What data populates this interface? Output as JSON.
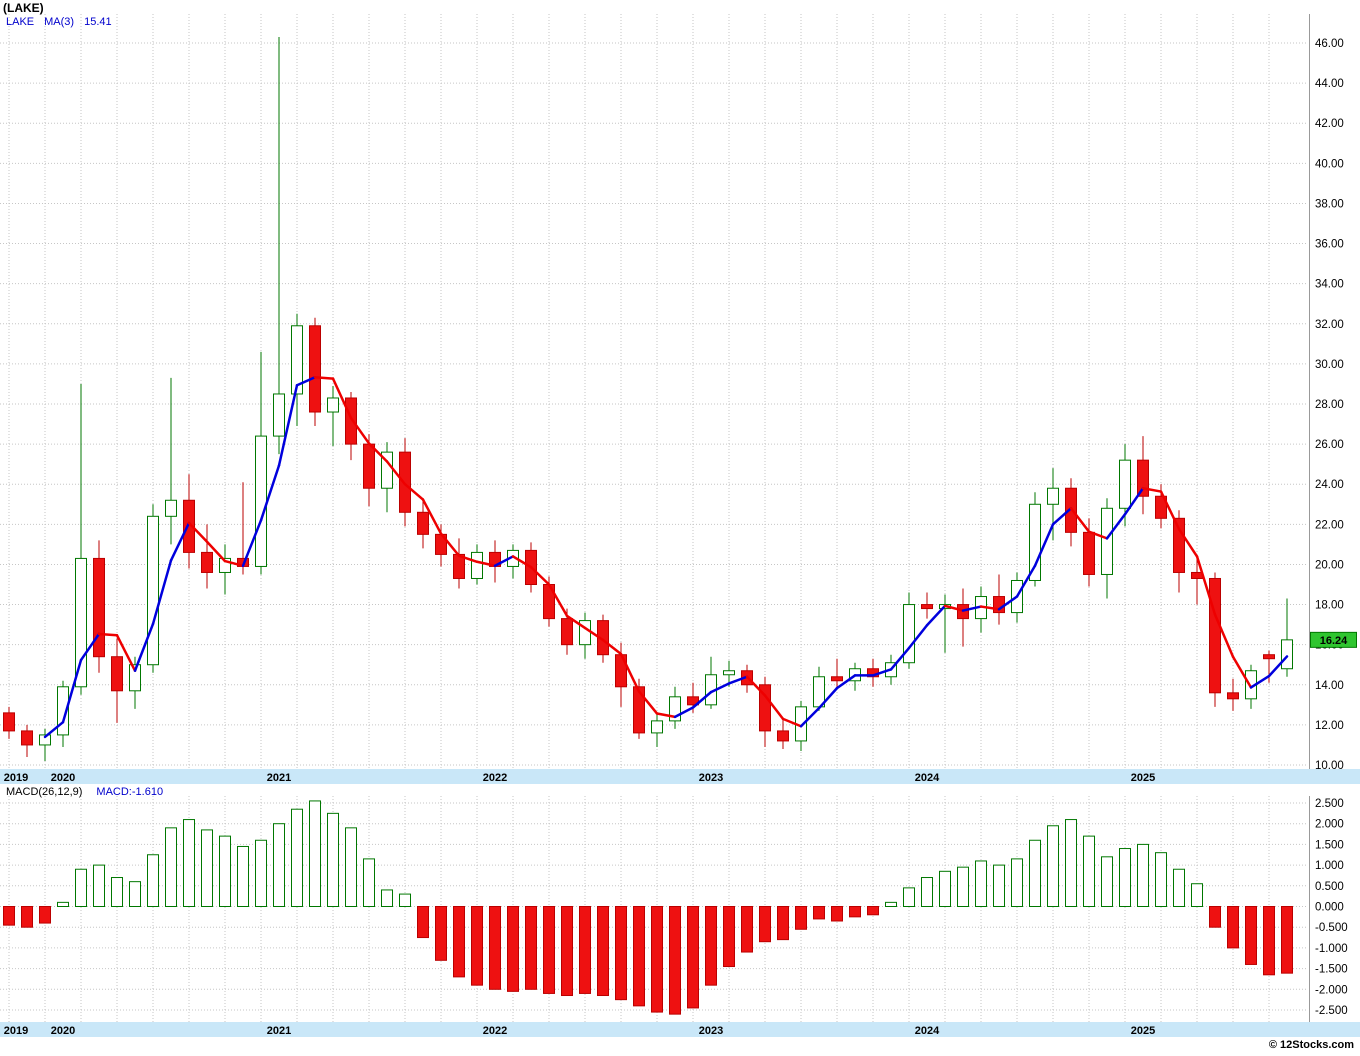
{
  "header": {
    "title": "(LAKE)",
    "legend_symbol": "LAKE",
    "legend_ma_label": "MA(3)",
    "legend_ma_value": "15.41"
  },
  "macd_header": {
    "label": "MACD(26,12,9)",
    "value_label": "MACD:-1.610"
  },
  "footer": {
    "copyright": "© 12Stocks.com"
  },
  "colors": {
    "up": "#007700",
    "up_fill": "#ffffff",
    "down": "#bb0000",
    "down_fill": "#ee1111",
    "ma_up": "#0000dd",
    "ma_down": "#ee0000",
    "grid": "#c6c6c6",
    "axis_text": "#000000",
    "strip_bg": "#c9e7f8",
    "tag_bg": "#2fc52f",
    "tag_border": "#007700",
    "tag_text": "#000000",
    "title_text": "#000000",
    "legend_text": "#0000cc",
    "macd_label_text": "#000000",
    "macd_value_text": "#0000cc",
    "panel_border": "#999999"
  },
  "chart_data": [
    {
      "type": "candlestick",
      "symbol": "LAKE",
      "ma_period": 3,
      "ma_last": 15.41,
      "last_price": 16.24,
      "ylim": [
        10,
        46
      ],
      "y_ticks": [
        46,
        44,
        42,
        40,
        38,
        36,
        34,
        32,
        30,
        28,
        26,
        24,
        22,
        20,
        18,
        16,
        14,
        12,
        10
      ],
      "year_ticks": [
        {
          "label": "2019",
          "index": 0
        },
        {
          "label": "2020",
          "index": 3
        },
        {
          "label": "2021",
          "index": 15
        },
        {
          "label": "2022",
          "index": 27
        },
        {
          "label": "2023",
          "index": 39
        },
        {
          "label": "2024",
          "index": 51
        },
        {
          "label": "2025",
          "index": 63
        }
      ],
      "months": [
        "2019-10",
        "2019-11",
        "2019-12",
        "2020-01",
        "2020-02",
        "2020-03",
        "2020-04",
        "2020-05",
        "2020-06",
        "2020-07",
        "2020-08",
        "2020-09",
        "2020-10",
        "2020-11",
        "2020-12",
        "2021-01",
        "2021-02",
        "2021-03",
        "2021-04",
        "2021-05",
        "2021-06",
        "2021-07",
        "2021-08",
        "2021-09",
        "2021-10",
        "2021-11",
        "2021-12",
        "2022-01",
        "2022-02",
        "2022-03",
        "2022-04",
        "2022-05",
        "2022-06",
        "2022-07",
        "2022-08",
        "2022-09",
        "2022-10",
        "2022-11",
        "2022-12",
        "2023-01",
        "2023-02",
        "2023-03",
        "2023-04",
        "2023-05",
        "2023-06",
        "2023-07",
        "2023-08",
        "2023-09",
        "2023-10",
        "2023-11",
        "2023-12",
        "2024-01",
        "2024-02",
        "2024-03",
        "2024-04",
        "2024-05",
        "2024-06",
        "2024-07",
        "2024-08",
        "2024-09",
        "2024-10",
        "2024-11",
        "2024-12",
        "2025-01",
        "2025-02",
        "2025-03",
        "2025-04",
        "2025-05",
        "2025-06",
        "2025-07",
        "2025-08",
        "2025-09"
      ],
      "ohlc": [
        [
          12.6,
          12.9,
          11.3,
          11.7
        ],
        [
          11.7,
          12.0,
          10.4,
          11.0
        ],
        [
          11.0,
          11.8,
          10.2,
          11.5
        ],
        [
          11.5,
          14.2,
          10.9,
          13.9
        ],
        [
          13.9,
          29.0,
          13.5,
          20.3
        ],
        [
          20.3,
          21.2,
          14.6,
          15.4
        ],
        [
          15.4,
          16.3,
          12.1,
          13.7
        ],
        [
          13.7,
          15.4,
          12.8,
          15.0
        ],
        [
          15.0,
          23.0,
          14.6,
          22.4
        ],
        [
          22.4,
          29.3,
          21.0,
          23.2
        ],
        [
          23.2,
          24.5,
          19.8,
          20.6
        ],
        [
          20.6,
          22.0,
          18.8,
          19.6
        ],
        [
          19.6,
          21.0,
          18.5,
          20.3
        ],
        [
          20.3,
          24.1,
          19.5,
          19.9
        ],
        [
          19.9,
          30.6,
          19.5,
          26.4
        ],
        [
          26.4,
          46.3,
          25.5,
          28.5
        ],
        [
          28.5,
          32.5,
          26.9,
          31.9
        ],
        [
          31.9,
          32.3,
          26.9,
          27.6
        ],
        [
          27.6,
          28.9,
          25.9,
          28.3
        ],
        [
          28.3,
          28.6,
          25.2,
          26.0
        ],
        [
          26.0,
          26.5,
          22.9,
          23.8
        ],
        [
          23.8,
          26.1,
          22.6,
          25.6
        ],
        [
          25.6,
          26.3,
          21.9,
          22.6
        ],
        [
          22.6,
          23.3,
          20.8,
          21.5
        ],
        [
          21.5,
          22.0,
          19.9,
          20.5
        ],
        [
          20.5,
          21.3,
          18.8,
          19.3
        ],
        [
          19.3,
          21.0,
          19.0,
          20.6
        ],
        [
          20.6,
          21.2,
          19.1,
          19.9
        ],
        [
          19.9,
          21.0,
          19.3,
          20.7
        ],
        [
          20.7,
          21.1,
          18.6,
          19.0
        ],
        [
          19.0,
          19.4,
          16.9,
          17.3
        ],
        [
          17.3,
          17.8,
          15.5,
          16.0
        ],
        [
          16.0,
          17.6,
          15.3,
          17.2
        ],
        [
          17.2,
          17.5,
          15.1,
          15.5
        ],
        [
          15.5,
          16.1,
          12.9,
          13.9
        ],
        [
          13.9,
          14.3,
          11.3,
          11.6
        ],
        [
          11.6,
          12.6,
          10.9,
          12.2
        ],
        [
          12.2,
          13.9,
          11.8,
          13.4
        ],
        [
          13.4,
          14.1,
          12.6,
          13.0
        ],
        [
          13.0,
          15.4,
          12.8,
          14.5
        ],
        [
          14.5,
          15.2,
          13.9,
          14.7
        ],
        [
          14.7,
          15.0,
          13.6,
          14.0
        ],
        [
          14.0,
          14.4,
          10.9,
          11.7
        ],
        [
          11.7,
          12.3,
          10.8,
          11.2
        ],
        [
          11.2,
          13.2,
          10.7,
          12.9
        ],
        [
          12.9,
          14.9,
          12.7,
          14.4
        ],
        [
          14.4,
          15.3,
          13.8,
          14.2
        ],
        [
          14.2,
          15.1,
          13.7,
          14.8
        ],
        [
          14.8,
          15.3,
          13.9,
          14.4
        ],
        [
          14.4,
          15.5,
          14.0,
          15.1
        ],
        [
          15.1,
          18.6,
          14.8,
          18.0
        ],
        [
          18.0,
          18.6,
          17.3,
          17.8
        ],
        [
          17.8,
          18.5,
          15.6,
          18.0
        ],
        [
          18.0,
          18.8,
          15.9,
          17.3
        ],
        [
          17.3,
          18.9,
          16.6,
          18.4
        ],
        [
          18.4,
          19.5,
          17.0,
          17.6
        ],
        [
          17.6,
          19.6,
          17.1,
          19.2
        ],
        [
          19.2,
          23.6,
          18.9,
          23.0
        ],
        [
          23.0,
          24.8,
          21.2,
          23.8
        ],
        [
          23.8,
          24.3,
          20.9,
          21.6
        ],
        [
          21.6,
          22.3,
          18.9,
          19.5
        ],
        [
          19.5,
          23.3,
          18.3,
          22.8
        ],
        [
          22.8,
          26.0,
          21.9,
          25.2
        ],
        [
          25.2,
          26.4,
          22.5,
          23.4
        ],
        [
          23.4,
          24.0,
          21.8,
          22.3
        ],
        [
          22.3,
          22.7,
          18.6,
          19.6
        ],
        [
          19.6,
          20.3,
          18.0,
          19.3
        ],
        [
          19.3,
          19.6,
          12.9,
          13.6
        ],
        [
          13.6,
          14.3,
          12.7,
          13.3
        ],
        [
          13.3,
          15.0,
          12.8,
          14.7
        ],
        [
          15.5,
          15.7,
          14.1,
          15.3
        ],
        [
          14.8,
          18.3,
          14.4,
          16.24
        ]
      ]
    },
    {
      "type": "bar",
      "name": "MACD(26,12,9) histogram",
      "last_value": -1.61,
      "ylim": [
        -2.5,
        2.5
      ],
      "y_ticks": [
        2.5,
        2.0,
        1.5,
        1.0,
        0.5,
        0.0,
        -0.5,
        -1.0,
        -1.5,
        -2.0,
        -2.5
      ],
      "values": [
        -0.45,
        -0.5,
        -0.4,
        0.1,
        0.9,
        1.0,
        0.7,
        0.6,
        1.25,
        1.9,
        2.1,
        1.85,
        1.7,
        1.45,
        1.6,
        2.0,
        2.35,
        2.55,
        2.25,
        1.9,
        1.15,
        0.4,
        0.3,
        -0.75,
        -1.3,
        -1.7,
        -1.9,
        -2.0,
        -2.05,
        -2.0,
        -2.1,
        -2.15,
        -2.1,
        -2.15,
        -2.25,
        -2.4,
        -2.55,
        -2.6,
        -2.45,
        -1.9,
        -1.45,
        -1.1,
        -0.85,
        -0.8,
        -0.55,
        -0.3,
        -0.35,
        -0.25,
        -0.2,
        0.1,
        0.45,
        0.7,
        0.85,
        0.95,
        1.1,
        1.0,
        1.15,
        1.6,
        1.95,
        2.1,
        1.7,
        1.2,
        1.4,
        1.5,
        1.3,
        0.9,
        0.55,
        -0.5,
        -1.0,
        -1.4,
        -1.65,
        -1.61
      ]
    }
  ]
}
